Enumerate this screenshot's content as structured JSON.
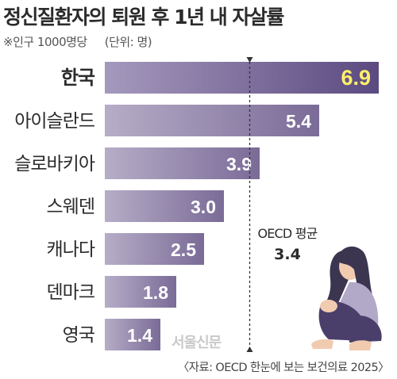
{
  "header": {
    "title": "정신질환자의 퇴원 후 1년 내 자살률",
    "subtitle": "※인구 1000명당",
    "unit": "(단위: 명)"
  },
  "chart_data": {
    "type": "bar",
    "orientation": "horizontal",
    "categories": [
      "한국",
      "아이슬란드",
      "슬로바키아",
      "스웨덴",
      "캐나다",
      "덴마크",
      "영국"
    ],
    "values": [
      6.9,
      5.4,
      3.9,
      3.0,
      2.5,
      1.8,
      1.4
    ],
    "value_labels": [
      "6.9",
      "5.4",
      "3.9",
      "3.0",
      "2.5",
      "1.8",
      "1.4"
    ],
    "highlight": "한국",
    "reference_line": {
      "label": "OECD 평균",
      "value": 3.4,
      "value_label": "3.4"
    },
    "colors": {
      "bar_start": "#b6adc7",
      "bar_end": "#7a6b97",
      "highlight_start": "#a599bd",
      "highlight_end": "#5b4a80",
      "highlight_text": "#fff06a",
      "value_text": "#ffffff",
      "label_text": "#2b2b2b",
      "line": "#333333"
    }
  },
  "footer": {
    "source": "〈자료: OECD 한눈에 보는 보건의료 2025〉",
    "watermark": "서울신문"
  }
}
